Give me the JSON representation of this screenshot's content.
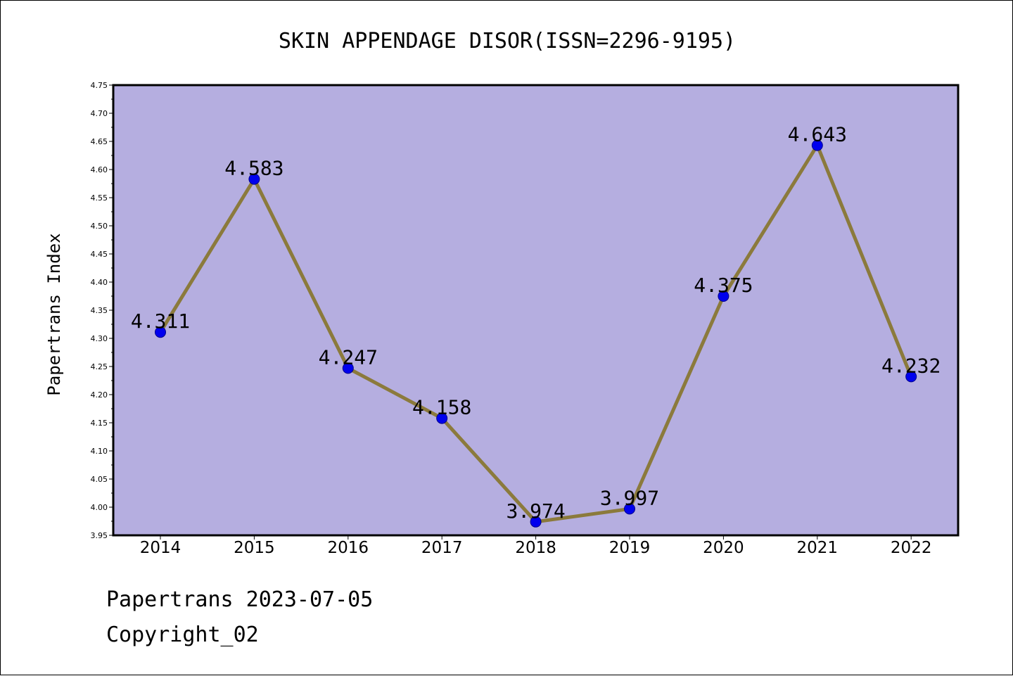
{
  "chart_data": {
    "type": "line",
    "title": "SKIN APPENDAGE DISOR(ISSN=2296-9195)",
    "xlabel": "",
    "ylabel": "Papertrans Index",
    "categories": [
      "2014",
      "2015",
      "2016",
      "2017",
      "2018",
      "2019",
      "2020",
      "2021",
      "2022"
    ],
    "series": [
      {
        "values": [
          4.311,
          4.583,
          4.247,
          4.158,
          3.974,
          3.997,
          4.375,
          4.643,
          4.232
        ]
      }
    ],
    "data_labels": [
      "4.311",
      "4.583",
      "4.247",
      "4.158",
      "3.974",
      "3.997",
      "4.375",
      "4.643",
      "4.232"
    ],
    "ylim": [
      3.95,
      4.75
    ],
    "yticks": [
      "3.95",
      "4.00",
      "4.05",
      "4.10",
      "4.15",
      "4.20",
      "4.25",
      "4.30",
      "4.35",
      "4.40",
      "4.45",
      "4.50",
      "4.55",
      "4.60",
      "4.65",
      "4.70",
      "4.75"
    ],
    "grid": false,
    "legend": "none",
    "colors": {
      "plot_background": "#b5aee0",
      "line": "#8b7a3c",
      "marker": "#0000ee"
    }
  },
  "footer": {
    "date_line": "Papertrans 2023-07-05",
    "copyright_line": "Copyright_02"
  }
}
